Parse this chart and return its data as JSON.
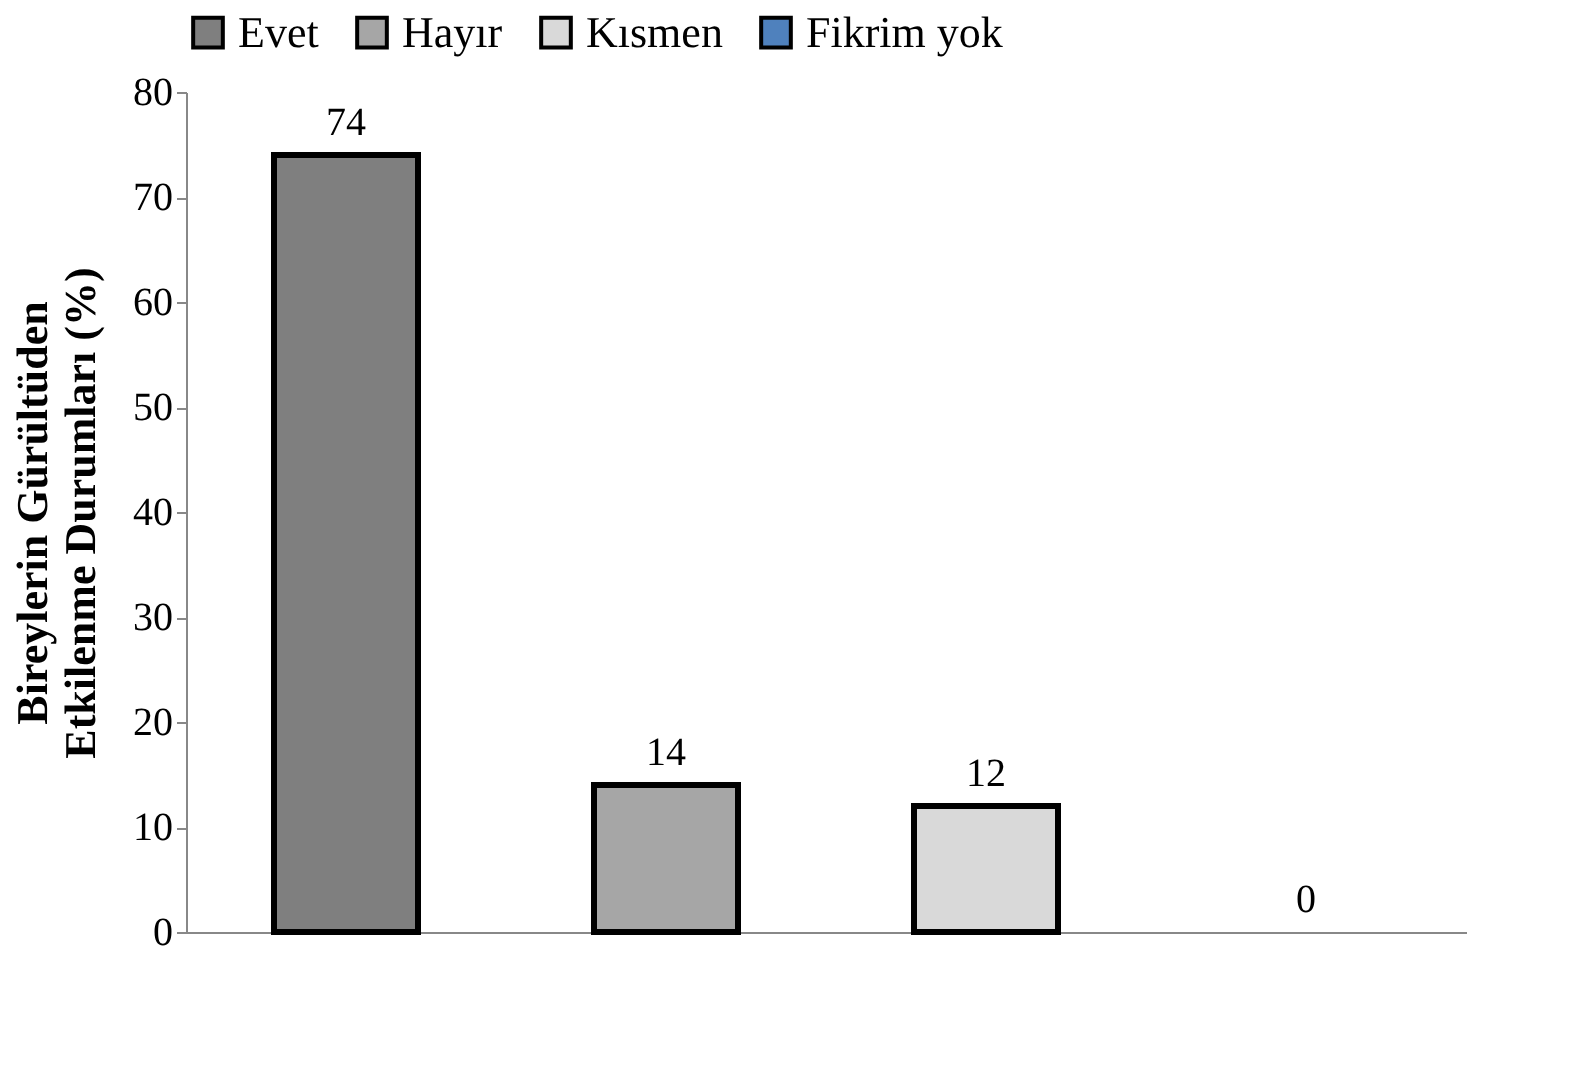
{
  "chart_data": {
    "type": "bar",
    "ylabel": "Bireylerin Gürültüden\nEtkilenme Durumları (%)",
    "categories": [
      null,
      null,
      null,
      null
    ],
    "series": [
      {
        "name": "Evet",
        "color": "#7f7f7f",
        "values": [
          74,
          null,
          null,
          null
        ]
      },
      {
        "name": "Hayır",
        "color": "#a6a6a6",
        "values": [
          null,
          14,
          null,
          null
        ]
      },
      {
        "name": "Kısmen",
        "color": "#d9d9d9",
        "values": [
          null,
          null,
          12,
          null
        ]
      },
      {
        "name": "Fikrim yok",
        "color": "#4f81bd",
        "values": [
          null,
          null,
          null,
          0
        ]
      }
    ],
    "ylim": [
      0,
      80
    ],
    "yticks": [
      0,
      10,
      20,
      30,
      40,
      50,
      60,
      70,
      80
    ],
    "data_labels": true,
    "grid": false,
    "legend": "top",
    "tick_labels": "y"
  }
}
